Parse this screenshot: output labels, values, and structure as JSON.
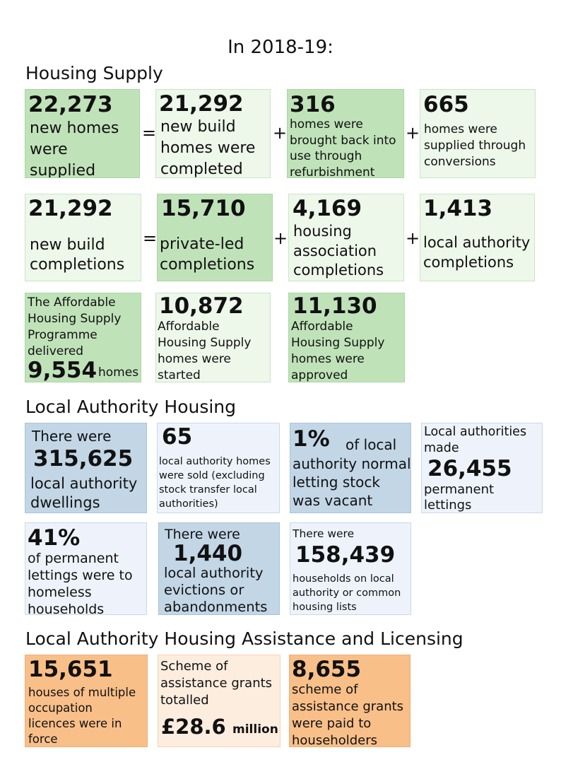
{
  "title": "In 2018-19:",
  "sections": {
    "supply": "Housing Supply",
    "la_housing": "Local Authority Housing",
    "assistance": "Local Authority Housing Assistance and Licensing"
  },
  "operators": {
    "equals": "=",
    "plus": "+"
  },
  "row1": {
    "b1": {
      "value": "22,273",
      "lines": [
        "new homes",
        "were",
        "supplied"
      ]
    },
    "b2": {
      "value": "21,292",
      "lines": [
        "new build",
        "homes were",
        "completed"
      ]
    },
    "b3": {
      "value": "316",
      "lines": [
        "homes were",
        "brought back into",
        "use through",
        "refurbishment"
      ]
    },
    "b4": {
      "value": "665",
      "lines": [
        "homes were",
        "supplied through",
        "conversions"
      ]
    }
  },
  "row2": {
    "b1": {
      "value": "21,292",
      "lines": [
        "new build",
        "completions"
      ]
    },
    "b2": {
      "value": "15,710",
      "lines": [
        "private-led",
        "completions"
      ]
    },
    "b3": {
      "value": "4,169",
      "lines": [
        "housing",
        "association",
        "completions"
      ]
    },
    "b4": {
      "value": "1,413",
      "lines": [
        "local authority",
        "completions"
      ]
    }
  },
  "row3": {
    "b1": {
      "lines": [
        "The Affordable",
        "Housing Supply",
        "Programme",
        "delivered"
      ],
      "value": "9,554",
      "suffix": "homes"
    },
    "b2": {
      "value": "10,872",
      "lines": [
        "Affordable",
        "Housing Supply",
        "homes were",
        "started"
      ]
    },
    "b3": {
      "value": "11,130",
      "lines": [
        "Affordable",
        "Housing Supply",
        "homes were",
        "approved"
      ]
    }
  },
  "row4": {
    "b1": {
      "prefix": "There were",
      "value": "315,625",
      "lines": [
        "local authority",
        "dwellings"
      ]
    },
    "b2": {
      "value": "65",
      "lines": [
        "local authority homes",
        "were sold (excluding",
        "stock transfer local",
        "authorities)"
      ]
    },
    "b3": {
      "value": "1%",
      "inline": "of local",
      "lines": [
        "authority normal",
        "letting stock",
        "was vacant"
      ]
    },
    "b4": {
      "prefix_lines": [
        "Local authorities",
        "made"
      ],
      "value": "26,455",
      "lines": [
        "permanent",
        "lettings"
      ]
    }
  },
  "row5": {
    "b1": {
      "value": "41%",
      "lines": [
        "of permanent",
        "lettings were to",
        "homeless",
        "households"
      ]
    },
    "b2": {
      "prefix": "There were",
      "value": "1,440",
      "lines": [
        "local authority",
        "evictions or",
        "abandonments"
      ]
    },
    "b3": {
      "prefix": "There were",
      "value": "158,439",
      "lines": [
        "households on local",
        "authority or common",
        "housing lists"
      ]
    }
  },
  "row6": {
    "b1": {
      "value": "15,651",
      "lines": [
        "houses of multiple",
        "occupation",
        "licences were in",
        "force"
      ]
    },
    "b2": {
      "lines": [
        "Scheme of",
        "assistance grants",
        "totalled"
      ],
      "value": "£28.6",
      "suffix": "million"
    },
    "b3": {
      "value": "8,655",
      "lines": [
        "scheme of",
        "assistance grants",
        "were paid to",
        "householders"
      ]
    }
  },
  "colors": {
    "green_dark": "#c0e2b9",
    "green_light": "#edf7ea",
    "blue_dark": "#c2d6e6",
    "blue_light": "#eef3fb",
    "orange_dark": "#f9bf89",
    "orange_light": "#fdeddf"
  }
}
